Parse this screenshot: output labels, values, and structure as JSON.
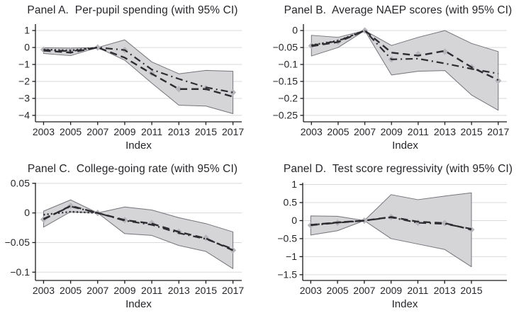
{
  "figure_name": "Event-study figure with four panels (95% confidence bands)",
  "colors": {
    "background": "#ffffff",
    "band_fill": "#d5d5d8",
    "band_edge": "#74747a",
    "line": "#2d2d31",
    "marker": "#b5b5ba",
    "grid": "#d9d9dc",
    "axis": "#1b1b1e",
    "text": "#26262b"
  },
  "chart_data": [
    {
      "type": "line",
      "title": "Panel A.  Per-pupil spending (with 95% CI)",
      "xlabel": "Index",
      "legend": "none",
      "grid": "horizontal",
      "x": [
        2003,
        2005,
        2007,
        2009,
        2011,
        2013,
        2015,
        2017
      ],
      "xlim": [
        2002.4,
        2017.65
      ],
      "ylim": [
        -4.38,
        1.38
      ],
      "yticks": [
        1,
        0,
        -1,
        -2,
        -3,
        -4
      ],
      "ytick_labels": [
        "1",
        "0",
        "−1",
        "−2",
        "−3",
        "−4"
      ],
      "xticks": [
        2003,
        2005,
        2007,
        2009,
        2011,
        2013,
        2015,
        2017
      ],
      "xtick_labels": [
        "2003",
        "2005",
        "2007",
        "2009",
        "2011",
        "2013",
        "2015",
        "2017"
      ],
      "ci_lower": [
        -0.35,
        -0.48,
        0,
        -0.75,
        -2.1,
        -3.4,
        -3.45,
        -3.9
      ],
      "ci_upper": [
        -0.02,
        -0.04,
        0,
        0.45,
        -0.85,
        -1.55,
        -1.35,
        -1.4
      ],
      "series": [
        {
          "name": "point estimates",
          "style": "markers",
          "values": [
            -0.13,
            -0.2,
            0,
            -0.15,
            -1.5,
            -2.45,
            -2.4,
            -2.65
          ]
        },
        {
          "name": "pre-period trend",
          "style": "dotted",
          "values": [
            -0.12,
            -0.17,
            0,
            null,
            null,
            null,
            null,
            null
          ]
        },
        {
          "name": "estimate (dash-dot)",
          "style": "dashdot",
          "values": [
            -0.14,
            -0.22,
            0,
            -0.15,
            -1.3,
            -1.85,
            -2.35,
            -2.65
          ]
        },
        {
          "name": "estimate (dashed)",
          "style": "dashed",
          "values": [
            -0.18,
            -0.3,
            0,
            -0.6,
            -1.55,
            -2.45,
            -2.45,
            -2.9
          ]
        }
      ]
    },
    {
      "type": "line",
      "title": "Panel B.  Average NAEP scores (with 95% CI)",
      "xlabel": "Index",
      "legend": "none",
      "grid": "horizontal",
      "x": [
        2003,
        2005,
        2007,
        2009,
        2011,
        2013,
        2015,
        2017
      ],
      "xlim": [
        2002.4,
        2017.65
      ],
      "ylim": [
        -0.269,
        0.019
      ],
      "yticks": [
        0,
        -0.05,
        -0.1,
        -0.15,
        -0.2,
        -0.25
      ],
      "ytick_labels": [
        "0",
        "−0.05",
        "−0.1",
        "−0.15",
        "−0.2",
        "−0.25"
      ],
      "xticks": [
        2003,
        2005,
        2007,
        2009,
        2011,
        2013,
        2015,
        2017
      ],
      "xtick_labels": [
        "2003",
        "2005",
        "2007",
        "2009",
        "2011",
        "2013",
        "2015",
        "2017"
      ],
      "ci_lower": [
        -0.075,
        -0.05,
        0,
        -0.131,
        -0.12,
        -0.118,
        -0.19,
        -0.235
      ],
      "ci_upper": [
        -0.014,
        -0.02,
        0,
        -0.044,
        -0.02,
        0,
        -0.038,
        -0.062
      ],
      "series": [
        {
          "name": "point estimates",
          "style": "markers",
          "values": [
            -0.045,
            -0.033,
            0,
            -0.085,
            -0.07,
            -0.062,
            -0.108,
            -0.148
          ]
        },
        {
          "name": "pre-period trend",
          "style": "dotted",
          "values": [
            -0.043,
            -0.03,
            0,
            null,
            null,
            null,
            null,
            null
          ]
        },
        {
          "name": "estimate (dash-dot)",
          "style": "dashdot",
          "values": [
            -0.044,
            -0.031,
            0,
            -0.085,
            -0.083,
            -0.097,
            -0.113,
            -0.127
          ]
        },
        {
          "name": "estimate (dashed)",
          "style": "dashed",
          "values": [
            -0.046,
            -0.034,
            0,
            -0.065,
            -0.074,
            -0.06,
            -0.108,
            -0.146
          ]
        }
      ]
    },
    {
      "type": "line",
      "title": "Panel C.  College-going rate (with 95% CI)",
      "xlabel": "Index",
      "legend": "none",
      "grid": "horizontal",
      "x": [
        2003,
        2005,
        2007,
        2009,
        2011,
        2013,
        2015,
        2017
      ],
      "xlim": [
        2002.4,
        2017.65
      ],
      "ylim": [
        -0.114,
        0.051
      ],
      "yticks": [
        0.05,
        0,
        -0.05,
        -0.1
      ],
      "ytick_labels": [
        "0.05",
        "0",
        "−0.05",
        "−0.1"
      ],
      "xticks": [
        2003,
        2005,
        2007,
        2009,
        2011,
        2013,
        2015,
        2017
      ],
      "xtick_labels": [
        "2003",
        "2005",
        "2007",
        "2009",
        "2011",
        "2013",
        "2015",
        "2017"
      ],
      "ci_lower": [
        -0.024,
        0.002,
        0,
        -0.035,
        -0.038,
        -0.055,
        -0.065,
        -0.094
      ],
      "ci_upper": [
        0.003,
        0.022,
        0,
        0.01,
        0.005,
        -0.008,
        -0.018,
        -0.032
      ],
      "series": [
        {
          "name": "point estimates",
          "style": "markers",
          "values": [
            -0.011,
            0.012,
            0,
            -0.012,
            -0.017,
            -0.032,
            -0.042,
            -0.063
          ]
        },
        {
          "name": "pre-period trend",
          "style": "dotted",
          "values": [
            -0.003,
            0.002,
            0,
            null,
            null,
            null,
            null,
            null
          ]
        },
        {
          "name": "estimate (dash-dot)",
          "style": "dashdot",
          "values": [
            -0.01,
            0.011,
            0,
            -0.013,
            -0.02,
            -0.034,
            -0.044,
            -0.061
          ]
        },
        {
          "name": "estimate (dashed)",
          "style": "dashed",
          "values": [
            -0.011,
            0.012,
            0,
            -0.012,
            -0.018,
            -0.032,
            -0.043,
            -0.063
          ]
        }
      ]
    },
    {
      "type": "line",
      "title": "Panel D.  Test score regressivity (with 95% CI)",
      "xlabel": "Index",
      "legend": "none",
      "grid": "horizontal",
      "x": [
        2003,
        2005,
        2007,
        2009,
        2011,
        2013,
        2015
      ],
      "xlim": [
        2002.4,
        2017.65
      ],
      "ylim": [
        -1.66,
        1.05
      ],
      "yticks": [
        1,
        0.5,
        0,
        -0.5,
        -1,
        -1.5
      ],
      "ytick_labels": [
        "1",
        "0.5",
        "0",
        "−0.5",
        "−1",
        "−1.5"
      ],
      "xticks": [
        2003,
        2005,
        2007,
        2009,
        2011,
        2013,
        2015
      ],
      "xtick_labels": [
        "2003",
        "2005",
        "2007",
        "2009",
        "2011",
        "2013",
        "2015"
      ],
      "ci_lower": [
        -0.4,
        -0.28,
        0,
        -0.5,
        -0.65,
        -0.8,
        -1.28
      ],
      "ci_upper": [
        0.13,
        0.12,
        0,
        0.72,
        0.58,
        0.68,
        0.77
      ],
      "series": [
        {
          "name": "point estimates",
          "style": "markers",
          "values": [
            -0.13,
            -0.06,
            0,
            0.1,
            -0.06,
            -0.07,
            -0.25
          ]
        },
        {
          "name": "pre-period trend",
          "style": "dotted",
          "values": [
            -0.12,
            -0.055,
            0,
            null,
            null,
            null,
            null
          ]
        },
        {
          "name": "estimate (dash-dot)",
          "style": "dashdot",
          "values": [
            -0.13,
            -0.06,
            0,
            0.09,
            -0.06,
            -0.09,
            -0.23
          ]
        },
        {
          "name": "estimate (dashed)",
          "style": "dashed",
          "values": [
            -0.12,
            -0.05,
            0,
            0.1,
            -0.03,
            -0.07,
            -0.25
          ]
        }
      ]
    }
  ]
}
